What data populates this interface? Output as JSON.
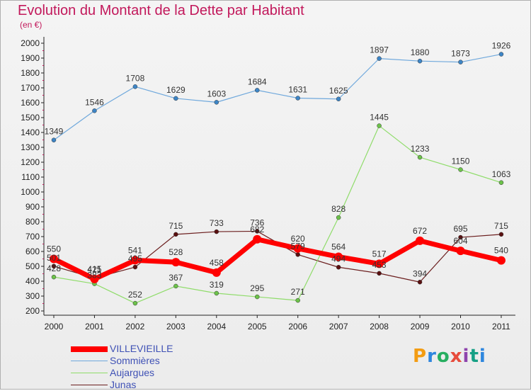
{
  "title": "Evolution du Montant de la Dette par Habitant",
  "subtitle": "(en €)",
  "logo": "Proxiti",
  "chart_data": {
    "type": "line",
    "x": [
      "2000",
      "2001",
      "2002",
      "2003",
      "2004",
      "2005",
      "2006",
      "2007",
      "2008",
      "2009",
      "2010",
      "2011"
    ],
    "ylim": [
      200,
      2000
    ],
    "yticks": [
      200,
      300,
      400,
      500,
      600,
      700,
      800,
      900,
      1000,
      1100,
      1200,
      1300,
      1400,
      1500,
      1600,
      1700,
      1800,
      1900,
      2000
    ],
    "grid": false,
    "legend_position": "bottom-left",
    "series": [
      {
        "name": "Junas",
        "color": "#6b1e1e",
        "point_color": "#5a1010",
        "width": 1.2,
        "radius": 3,
        "values": [
          501,
          421,
          495,
          715,
          733,
          736,
          579,
          494,
          453,
          394,
          695,
          715
        ]
      },
      {
        "name": "Aujargues",
        "color": "#8fdc6a",
        "point_color": "#6cc24a",
        "width": 1.2,
        "radius": 3,
        "values": [
          428,
          383,
          252,
          367,
          319,
          295,
          271,
          828,
          1445,
          1233,
          1150,
          1063
        ]
      },
      {
        "name": "Sommières",
        "color": "#6fa8dc",
        "point_color": "#3d85c6",
        "width": 1.2,
        "radius": 3,
        "values": [
          1349,
          1546,
          1708,
          1629,
          1603,
          1684,
          1631,
          1625,
          1897,
          1880,
          1873,
          1926
        ]
      },
      {
        "name": "VILLEVIEILLE",
        "color": "#ff0000",
        "point_color": "#ff0000",
        "width": 7,
        "radius": 6,
        "values": [
          550,
          415,
          541,
          528,
          458,
          682,
          620,
          564,
          517,
          672,
          604,
          540
        ]
      }
    ],
    "data_labels": [
      {
        "series": "Sommières",
        "values": [
          "1349",
          "1546",
          "1708",
          "1629",
          "1603",
          "1684",
          "1631",
          "1625",
          "1897",
          "1880",
          "1873",
          "1926"
        ]
      },
      {
        "series": "Aujargues",
        "values": [
          "428",
          "383",
          "252",
          "367",
          "319",
          "295",
          "271",
          "828",
          "1445",
          "1233",
          "1150",
          "1063"
        ]
      },
      {
        "series": "Junas",
        "values": [
          "501",
          "421",
          "495",
          "715",
          "733",
          "736",
          "579",
          "494",
          "453",
          "394",
          "695",
          "715"
        ]
      },
      {
        "series": "VILLEVIEILLE",
        "values": [
          "550",
          "415",
          "541",
          "528",
          "458",
          "682",
          "620",
          "564",
          "517",
          "672",
          "604",
          "540"
        ]
      }
    ],
    "legend": [
      "VILLEVIEILLE",
      "Sommières",
      "Aujargues",
      "Junas"
    ]
  }
}
